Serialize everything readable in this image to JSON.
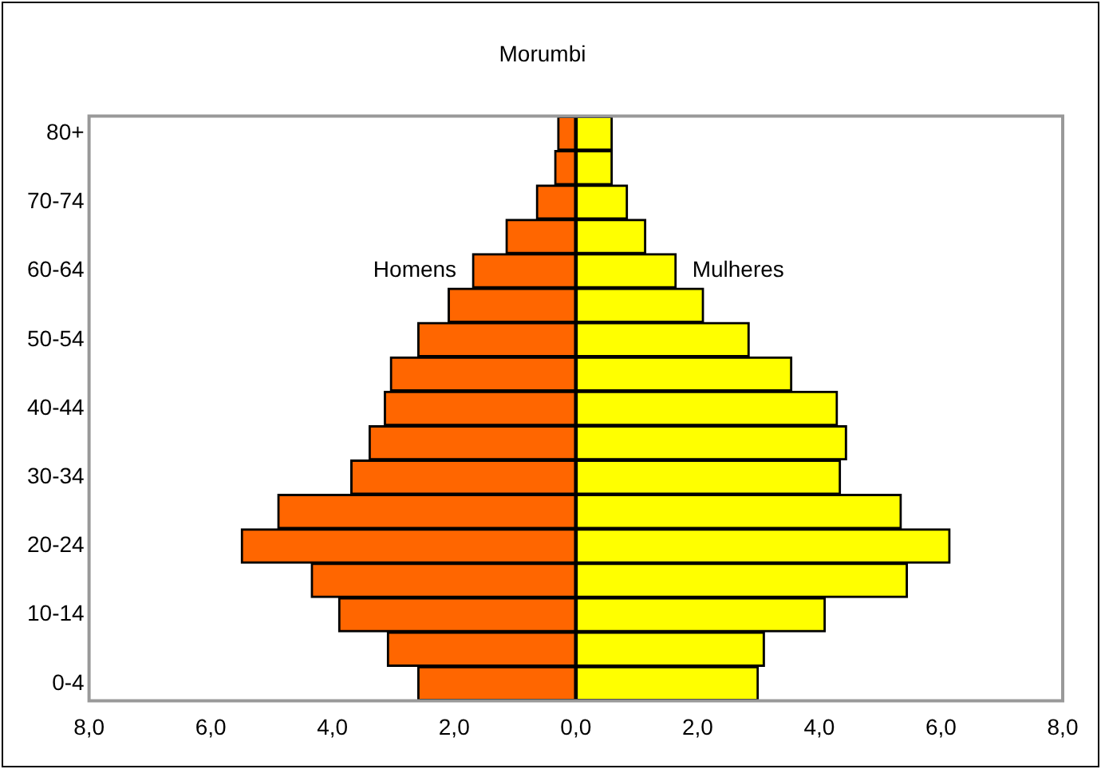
{
  "chart_data": {
    "type": "bar",
    "title": "Morumbi",
    "orientation": "horizontal",
    "stacked": true,
    "legend": false,
    "grid": false,
    "categories": [
      "80+",
      null,
      "70-74",
      null,
      "60-64",
      null,
      "50-54",
      null,
      "40-44",
      null,
      "30-34",
      null,
      "20-24",
      null,
      "10-14",
      null,
      "0-4"
    ],
    "series": [
      {
        "name": "Homens",
        "color": "#ff6600",
        "values": [
          -0.3,
          -0.35,
          -0.65,
          -1.15,
          -1.7,
          -2.1,
          -2.6,
          -3.05,
          -3.15,
          -3.4,
          -3.7,
          -4.9,
          -5.5,
          -4.35,
          -3.9,
          -3.1,
          -2.6
        ]
      },
      {
        "name": "Mulheres",
        "color": "#ffff00",
        "values": [
          0.6,
          0.6,
          0.85,
          1.15,
          1.65,
          2.1,
          2.85,
          3.55,
          4.3,
          4.45,
          4.35,
          5.35,
          6.15,
          5.45,
          4.1,
          3.1,
          3.0
        ]
      }
    ],
    "xlim": [
      -8,
      8
    ],
    "xticks": [
      {
        "value": -8,
        "label": "8,0"
      },
      {
        "value": -6,
        "label": "6,0"
      },
      {
        "value": -4,
        "label": "4,0"
      },
      {
        "value": -2,
        "label": "2,0"
      },
      {
        "value": 0,
        "label": "0,0"
      },
      {
        "value": 2,
        "label": "2,0"
      },
      {
        "value": 4,
        "label": "4,0"
      },
      {
        "value": 6,
        "label": "6,0"
      },
      {
        "value": 8,
        "label": "8,0"
      }
    ]
  }
}
